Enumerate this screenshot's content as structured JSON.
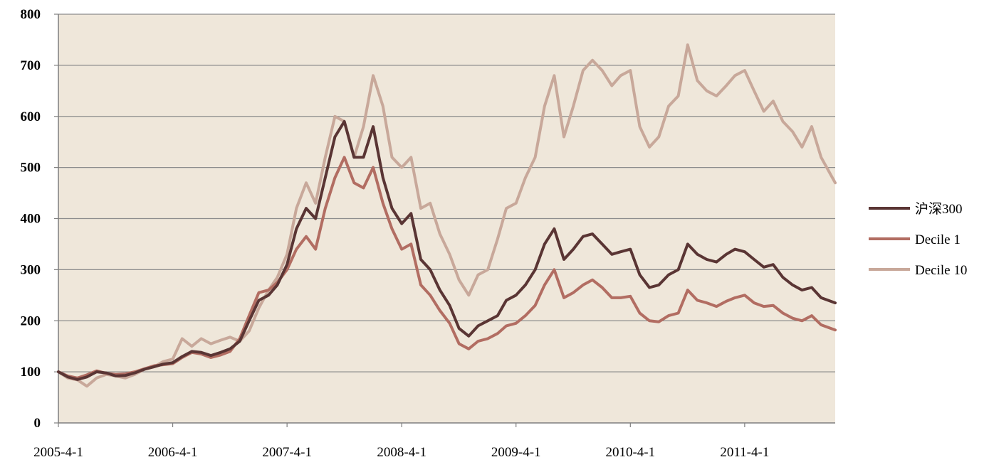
{
  "chart_data": {
    "type": "line",
    "title": "",
    "xlabel": "",
    "ylabel": "",
    "ylim": [
      0,
      800
    ],
    "yticks": [
      "0",
      "100",
      "200",
      "300",
      "400",
      "500",
      "600",
      "700",
      "800"
    ],
    "xlim": [
      "2005-04-01",
      "2012-01-15"
    ],
    "xticks": [
      {
        "date": "2005-04-01",
        "label": "2005-4-1"
      },
      {
        "date": "2006-04-01",
        "label": "2006-4-1"
      },
      {
        "date": "2007-04-01",
        "label": "2007-4-1"
      },
      {
        "date": "2008-04-01",
        "label": "2008-4-1"
      },
      {
        "date": "2009-04-01",
        "label": "2009-4-1"
      },
      {
        "date": "2010-04-01",
        "label": "2010-4-1"
      },
      {
        "date": "2011-04-01",
        "label": "2011-4-1"
      }
    ],
    "grid": "horizontal",
    "legend_position": "right",
    "plot_background": "#EFE7DA",
    "series": [
      {
        "name": "沪深300",
        "color": "#5A3534",
        "points": [
          [
            "2005-04-01",
            100
          ],
          [
            "2005-05-01",
            90
          ],
          [
            "2005-06-01",
            85
          ],
          [
            "2005-07-01",
            90
          ],
          [
            "2005-08-01",
            100
          ],
          [
            "2005-09-01",
            98
          ],
          [
            "2005-10-01",
            92
          ],
          [
            "2005-11-01",
            93
          ],
          [
            "2005-12-01",
            98
          ],
          [
            "2006-01-01",
            105
          ],
          [
            "2006-02-01",
            110
          ],
          [
            "2006-03-01",
            115
          ],
          [
            "2006-04-01",
            118
          ],
          [
            "2006-05-01",
            130
          ],
          [
            "2006-06-01",
            140
          ],
          [
            "2006-07-01",
            138
          ],
          [
            "2006-08-01",
            132
          ],
          [
            "2006-09-01",
            138
          ],
          [
            "2006-10-01",
            145
          ],
          [
            "2006-11-01",
            160
          ],
          [
            "2006-12-01",
            200
          ],
          [
            "2007-01-01",
            240
          ],
          [
            "2007-02-01",
            250
          ],
          [
            "2007-03-01",
            270
          ],
          [
            "2007-04-01",
            310
          ],
          [
            "2007-05-01",
            380
          ],
          [
            "2007-06-01",
            420
          ],
          [
            "2007-07-01",
            400
          ],
          [
            "2007-08-01",
            480
          ],
          [
            "2007-09-01",
            560
          ],
          [
            "2007-10-01",
            590
          ],
          [
            "2007-11-01",
            520
          ],
          [
            "2007-12-01",
            520
          ],
          [
            "2008-01-01",
            580
          ],
          [
            "2008-02-01",
            480
          ],
          [
            "2008-03-01",
            420
          ],
          [
            "2008-04-01",
            390
          ],
          [
            "2008-05-01",
            410
          ],
          [
            "2008-06-01",
            320
          ],
          [
            "2008-07-01",
            300
          ],
          [
            "2008-08-01",
            260
          ],
          [
            "2008-09-01",
            230
          ],
          [
            "2008-10-01",
            185
          ],
          [
            "2008-11-01",
            170
          ],
          [
            "2008-12-01",
            190
          ],
          [
            "2009-01-01",
            200
          ],
          [
            "2009-02-01",
            210
          ],
          [
            "2009-03-01",
            240
          ],
          [
            "2009-04-01",
            250
          ],
          [
            "2009-05-01",
            270
          ],
          [
            "2009-06-01",
            300
          ],
          [
            "2009-07-01",
            350
          ],
          [
            "2009-08-01",
            380
          ],
          [
            "2009-09-01",
            320
          ],
          [
            "2009-10-01",
            340
          ],
          [
            "2009-11-01",
            365
          ],
          [
            "2009-12-01",
            370
          ],
          [
            "2010-01-01",
            350
          ],
          [
            "2010-02-01",
            330
          ],
          [
            "2010-03-01",
            335
          ],
          [
            "2010-04-01",
            340
          ],
          [
            "2010-05-01",
            290
          ],
          [
            "2010-06-01",
            265
          ],
          [
            "2010-07-01",
            270
          ],
          [
            "2010-08-01",
            290
          ],
          [
            "2010-09-01",
            300
          ],
          [
            "2010-10-01",
            350
          ],
          [
            "2010-11-01",
            330
          ],
          [
            "2010-12-01",
            320
          ],
          [
            "2011-01-01",
            315
          ],
          [
            "2011-02-01",
            330
          ],
          [
            "2011-03-01",
            340
          ],
          [
            "2011-04-01",
            335
          ],
          [
            "2011-05-01",
            320
          ],
          [
            "2011-06-01",
            305
          ],
          [
            "2011-07-01",
            310
          ],
          [
            "2011-08-01",
            285
          ],
          [
            "2011-09-01",
            270
          ],
          [
            "2011-10-01",
            260
          ],
          [
            "2011-11-01",
            265
          ],
          [
            "2011-12-01",
            245
          ],
          [
            "2012-01-15",
            235
          ]
        ]
      },
      {
        "name": "Decile 1",
        "color": "#B26D62",
        "points": [
          [
            "2005-04-01",
            100
          ],
          [
            "2005-05-01",
            92
          ],
          [
            "2005-06-01",
            88
          ],
          [
            "2005-07-01",
            94
          ],
          [
            "2005-08-01",
            102
          ],
          [
            "2005-09-01",
            97
          ],
          [
            "2005-10-01",
            95
          ],
          [
            "2005-11-01",
            96
          ],
          [
            "2005-12-01",
            100
          ],
          [
            "2006-01-01",
            106
          ],
          [
            "2006-02-01",
            112
          ],
          [
            "2006-03-01",
            114
          ],
          [
            "2006-04-01",
            116
          ],
          [
            "2006-05-01",
            128
          ],
          [
            "2006-06-01",
            138
          ],
          [
            "2006-07-01",
            135
          ],
          [
            "2006-08-01",
            128
          ],
          [
            "2006-09-01",
            133
          ],
          [
            "2006-10-01",
            140
          ],
          [
            "2006-11-01",
            165
          ],
          [
            "2006-12-01",
            210
          ],
          [
            "2007-01-01",
            255
          ],
          [
            "2007-02-01",
            260
          ],
          [
            "2007-03-01",
            275
          ],
          [
            "2007-04-01",
            300
          ],
          [
            "2007-05-01",
            340
          ],
          [
            "2007-06-01",
            365
          ],
          [
            "2007-07-01",
            340
          ],
          [
            "2007-08-01",
            420
          ],
          [
            "2007-09-01",
            480
          ],
          [
            "2007-10-01",
            520
          ],
          [
            "2007-11-01",
            470
          ],
          [
            "2007-12-01",
            460
          ],
          [
            "2008-01-01",
            500
          ],
          [
            "2008-02-01",
            430
          ],
          [
            "2008-03-01",
            380
          ],
          [
            "2008-04-01",
            340
          ],
          [
            "2008-05-01",
            350
          ],
          [
            "2008-06-01",
            270
          ],
          [
            "2008-07-01",
            250
          ],
          [
            "2008-08-01",
            220
          ],
          [
            "2008-09-01",
            195
          ],
          [
            "2008-10-01",
            155
          ],
          [
            "2008-11-01",
            145
          ],
          [
            "2008-12-01",
            160
          ],
          [
            "2009-01-01",
            165
          ],
          [
            "2009-02-01",
            175
          ],
          [
            "2009-03-01",
            190
          ],
          [
            "2009-04-01",
            195
          ],
          [
            "2009-05-01",
            210
          ],
          [
            "2009-06-01",
            230
          ],
          [
            "2009-07-01",
            270
          ],
          [
            "2009-08-01",
            300
          ],
          [
            "2009-09-01",
            245
          ],
          [
            "2009-10-01",
            255
          ],
          [
            "2009-11-01",
            270
          ],
          [
            "2009-12-01",
            280
          ],
          [
            "2010-01-01",
            265
          ],
          [
            "2010-02-01",
            245
          ],
          [
            "2010-03-01",
            245
          ],
          [
            "2010-04-01",
            248
          ],
          [
            "2010-05-01",
            215
          ],
          [
            "2010-06-01",
            200
          ],
          [
            "2010-07-01",
            198
          ],
          [
            "2010-08-01",
            210
          ],
          [
            "2010-09-01",
            215
          ],
          [
            "2010-10-01",
            260
          ],
          [
            "2010-11-01",
            240
          ],
          [
            "2010-12-01",
            235
          ],
          [
            "2011-01-01",
            228
          ],
          [
            "2011-02-01",
            238
          ],
          [
            "2011-03-01",
            245
          ],
          [
            "2011-04-01",
            250
          ],
          [
            "2011-05-01",
            235
          ],
          [
            "2011-06-01",
            228
          ],
          [
            "2011-07-01",
            230
          ],
          [
            "2011-08-01",
            215
          ],
          [
            "2011-09-01",
            205
          ],
          [
            "2011-10-01",
            200
          ],
          [
            "2011-11-01",
            210
          ],
          [
            "2011-12-01",
            192
          ],
          [
            "2012-01-15",
            182
          ]
        ]
      },
      {
        "name": "Decile 10",
        "color": "#C8A89A",
        "points": [
          [
            "2005-04-01",
            100
          ],
          [
            "2005-05-01",
            88
          ],
          [
            "2005-06-01",
            84
          ],
          [
            "2005-07-01",
            72
          ],
          [
            "2005-08-01",
            88
          ],
          [
            "2005-09-01",
            95
          ],
          [
            "2005-10-01",
            92
          ],
          [
            "2005-11-01",
            88
          ],
          [
            "2005-12-01",
            95
          ],
          [
            "2006-01-01",
            105
          ],
          [
            "2006-02-01",
            110
          ],
          [
            "2006-03-01",
            120
          ],
          [
            "2006-04-01",
            125
          ],
          [
            "2006-05-01",
            165
          ],
          [
            "2006-06-01",
            150
          ],
          [
            "2006-07-01",
            165
          ],
          [
            "2006-08-01",
            155
          ],
          [
            "2006-09-01",
            162
          ],
          [
            "2006-10-01",
            168
          ],
          [
            "2006-11-01",
            160
          ],
          [
            "2006-12-01",
            180
          ],
          [
            "2007-01-01",
            225
          ],
          [
            "2007-02-01",
            260
          ],
          [
            "2007-03-01",
            285
          ],
          [
            "2007-04-01",
            330
          ],
          [
            "2007-05-01",
            420
          ],
          [
            "2007-06-01",
            470
          ],
          [
            "2007-07-01",
            430
          ],
          [
            "2007-08-01",
            520
          ],
          [
            "2007-09-01",
            600
          ],
          [
            "2007-10-01",
            590
          ],
          [
            "2007-11-01",
            520
          ],
          [
            "2007-12-01",
            580
          ],
          [
            "2008-01-01",
            680
          ],
          [
            "2008-02-01",
            620
          ],
          [
            "2008-03-01",
            520
          ],
          [
            "2008-04-01",
            500
          ],
          [
            "2008-05-01",
            520
          ],
          [
            "2008-06-01",
            420
          ],
          [
            "2008-07-01",
            430
          ],
          [
            "2008-08-01",
            370
          ],
          [
            "2008-09-01",
            330
          ],
          [
            "2008-10-01",
            280
          ],
          [
            "2008-11-01",
            250
          ],
          [
            "2008-12-01",
            290
          ],
          [
            "2009-01-01",
            300
          ],
          [
            "2009-02-01",
            360
          ],
          [
            "2009-03-01",
            420
          ],
          [
            "2009-04-01",
            430
          ],
          [
            "2009-05-01",
            480
          ],
          [
            "2009-06-01",
            520
          ],
          [
            "2009-07-01",
            620
          ],
          [
            "2009-08-01",
            680
          ],
          [
            "2009-09-01",
            560
          ],
          [
            "2009-10-01",
            620
          ],
          [
            "2009-11-01",
            690
          ],
          [
            "2009-12-01",
            710
          ],
          [
            "2010-01-01",
            690
          ],
          [
            "2010-02-01",
            660
          ],
          [
            "2010-03-01",
            680
          ],
          [
            "2010-04-01",
            690
          ],
          [
            "2010-05-01",
            580
          ],
          [
            "2010-06-01",
            540
          ],
          [
            "2010-07-01",
            560
          ],
          [
            "2010-08-01",
            620
          ],
          [
            "2010-09-01",
            640
          ],
          [
            "2010-10-01",
            740
          ],
          [
            "2010-11-01",
            670
          ],
          [
            "2010-12-01",
            650
          ],
          [
            "2011-01-01",
            640
          ],
          [
            "2011-02-01",
            660
          ],
          [
            "2011-03-01",
            680
          ],
          [
            "2011-04-01",
            690
          ],
          [
            "2011-05-01",
            650
          ],
          [
            "2011-06-01",
            610
          ],
          [
            "2011-07-01",
            630
          ],
          [
            "2011-08-01",
            590
          ],
          [
            "2011-09-01",
            570
          ],
          [
            "2011-10-01",
            540
          ],
          [
            "2011-11-01",
            580
          ],
          [
            "2011-12-01",
            520
          ],
          [
            "2012-01-15",
            470
          ]
        ]
      }
    ]
  }
}
